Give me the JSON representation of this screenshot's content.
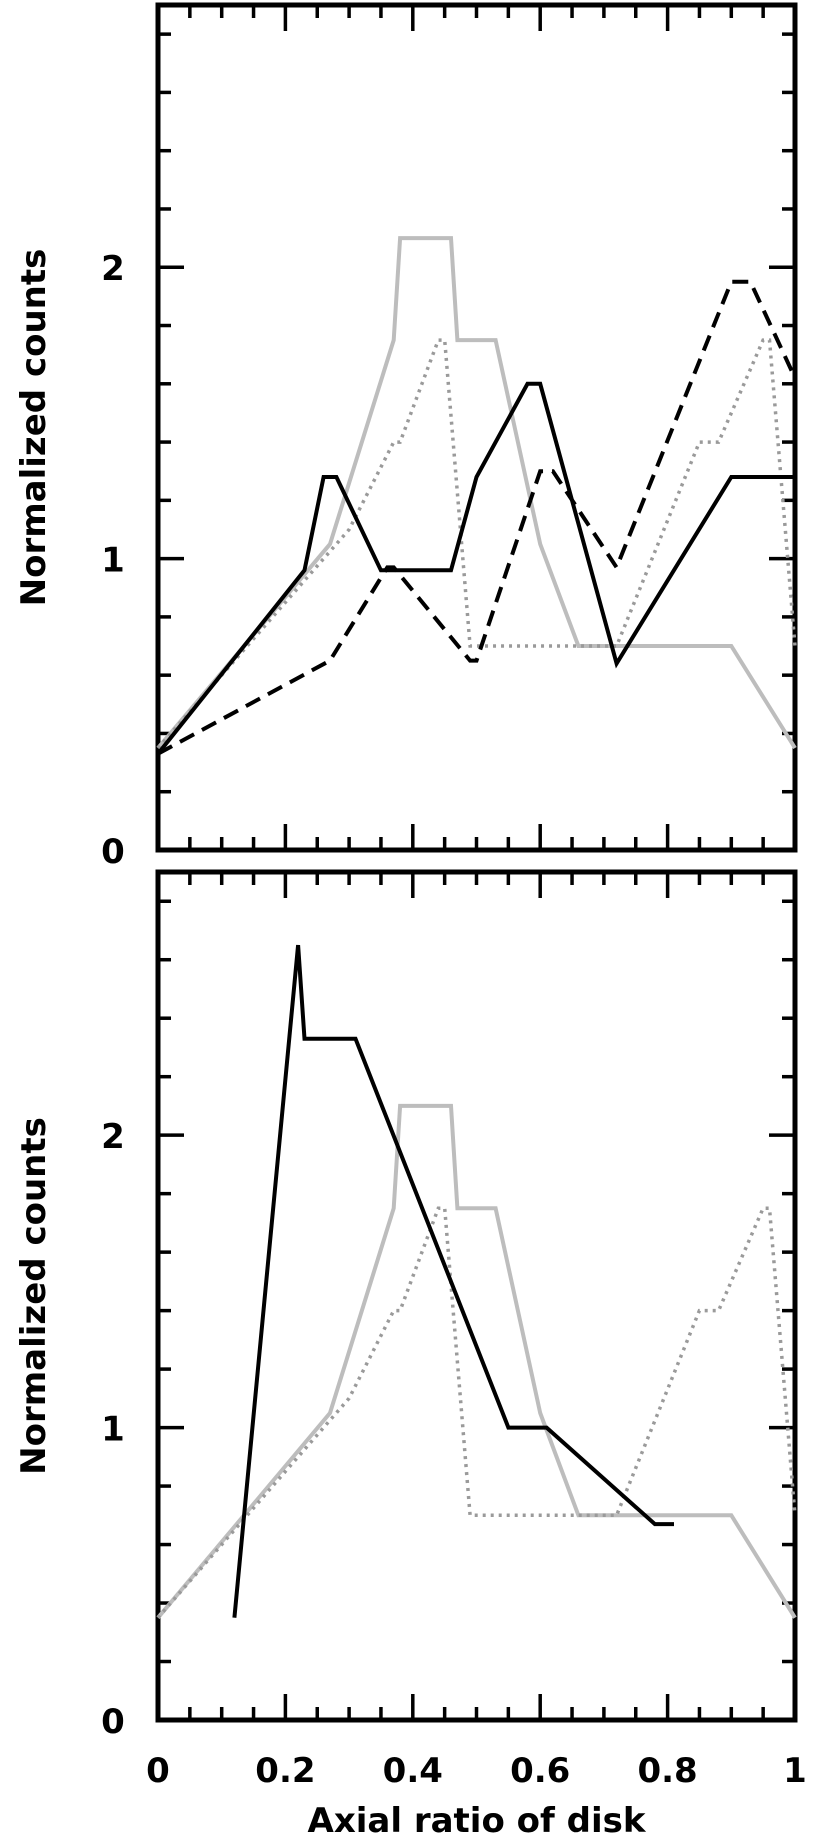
{
  "chart_data": [
    {
      "type": "line",
      "panel": "top",
      "xlabel": "",
      "ylabel": "Normalized counts",
      "xlim": [
        0,
        1
      ],
      "ylim": [
        0,
        2.9
      ],
      "x_ticks": [
        "",
        "",
        "",
        "",
        "",
        ""
      ],
      "y_ticks": [
        "0",
        "1",
        "2"
      ],
      "grid": false,
      "series": [
        {
          "style": "solid",
          "color": "#bdbdbd",
          "x": [
            0,
            0.27,
            0.37,
            0.38,
            0.46,
            0.47,
            0.53,
            0.6,
            0.66,
            0.9,
            1.0
          ],
          "y": [
            0.35,
            1.05,
            1.75,
            2.1,
            2.1,
            1.75,
            1.75,
            1.05,
            0.7,
            0.7,
            0.35
          ]
        },
        {
          "style": "dotted",
          "color": "#9a9a9a",
          "x": [
            0,
            0.3,
            0.37,
            0.38,
            0.44,
            0.45,
            0.49,
            0.5,
            0.7,
            0.72,
            0.85,
            0.88,
            0.95,
            0.96,
            1.0
          ],
          "y": [
            0.35,
            1.1,
            1.4,
            1.4,
            1.75,
            1.75,
            0.7,
            0.7,
            0.7,
            0.7,
            1.4,
            1.4,
            1.75,
            1.75,
            0.7
          ]
        },
        {
          "style": "solid",
          "color": "#000000",
          "x": [
            0,
            0.23,
            0.26,
            0.28,
            0.35,
            0.37,
            0.46,
            0.5,
            0.58,
            0.6,
            0.72,
            0.9,
            1.0
          ],
          "y": [
            0.33,
            0.96,
            1.28,
            1.28,
            0.96,
            0.96,
            0.96,
            1.28,
            1.6,
            1.6,
            0.64,
            1.28,
            1.28
          ]
        },
        {
          "style": "dashed",
          "color": "#000000",
          "x": [
            0,
            0.27,
            0.36,
            0.37,
            0.49,
            0.5,
            0.6,
            0.62,
            0.72,
            0.9,
            0.93,
            1.0
          ],
          "y": [
            0.33,
            0.65,
            0.97,
            0.97,
            0.65,
            0.65,
            1.3,
            1.3,
            0.97,
            1.95,
            1.95,
            1.62
          ]
        }
      ]
    },
    {
      "type": "line",
      "panel": "bottom",
      "xlabel": "Axial ratio of disk",
      "ylabel": "Normalized counts",
      "xlim": [
        0,
        1
      ],
      "ylim": [
        0,
        2.9
      ],
      "x_ticks": [
        "0",
        "0.2",
        "0.4",
        "0.6",
        "0.8",
        "1"
      ],
      "y_ticks": [
        "0",
        "1",
        "2"
      ],
      "grid": false,
      "series": [
        {
          "style": "solid",
          "color": "#bdbdbd",
          "x": [
            0,
            0.27,
            0.37,
            0.38,
            0.46,
            0.47,
            0.53,
            0.6,
            0.66,
            0.9,
            1.0
          ],
          "y": [
            0.35,
            1.05,
            1.75,
            2.1,
            2.1,
            1.75,
            1.75,
            1.05,
            0.7,
            0.7,
            0.35
          ]
        },
        {
          "style": "dotted",
          "color": "#9a9a9a",
          "x": [
            0,
            0.3,
            0.37,
            0.38,
            0.44,
            0.45,
            0.49,
            0.5,
            0.7,
            0.72,
            0.85,
            0.88,
            0.95,
            0.96,
            1.0
          ],
          "y": [
            0.35,
            1.1,
            1.4,
            1.4,
            1.75,
            1.75,
            0.7,
            0.7,
            0.7,
            0.7,
            1.4,
            1.4,
            1.75,
            1.75,
            0.7
          ]
        },
        {
          "style": "solid",
          "color": "#000000",
          "x": [
            0.12,
            0.22,
            0.23,
            0.31,
            0.55,
            0.61,
            0.78,
            0.81
          ],
          "y": [
            0.35,
            2.65,
            2.33,
            2.33,
            1.0,
            1.0,
            0.67,
            0.67
          ]
        }
      ]
    }
  ]
}
